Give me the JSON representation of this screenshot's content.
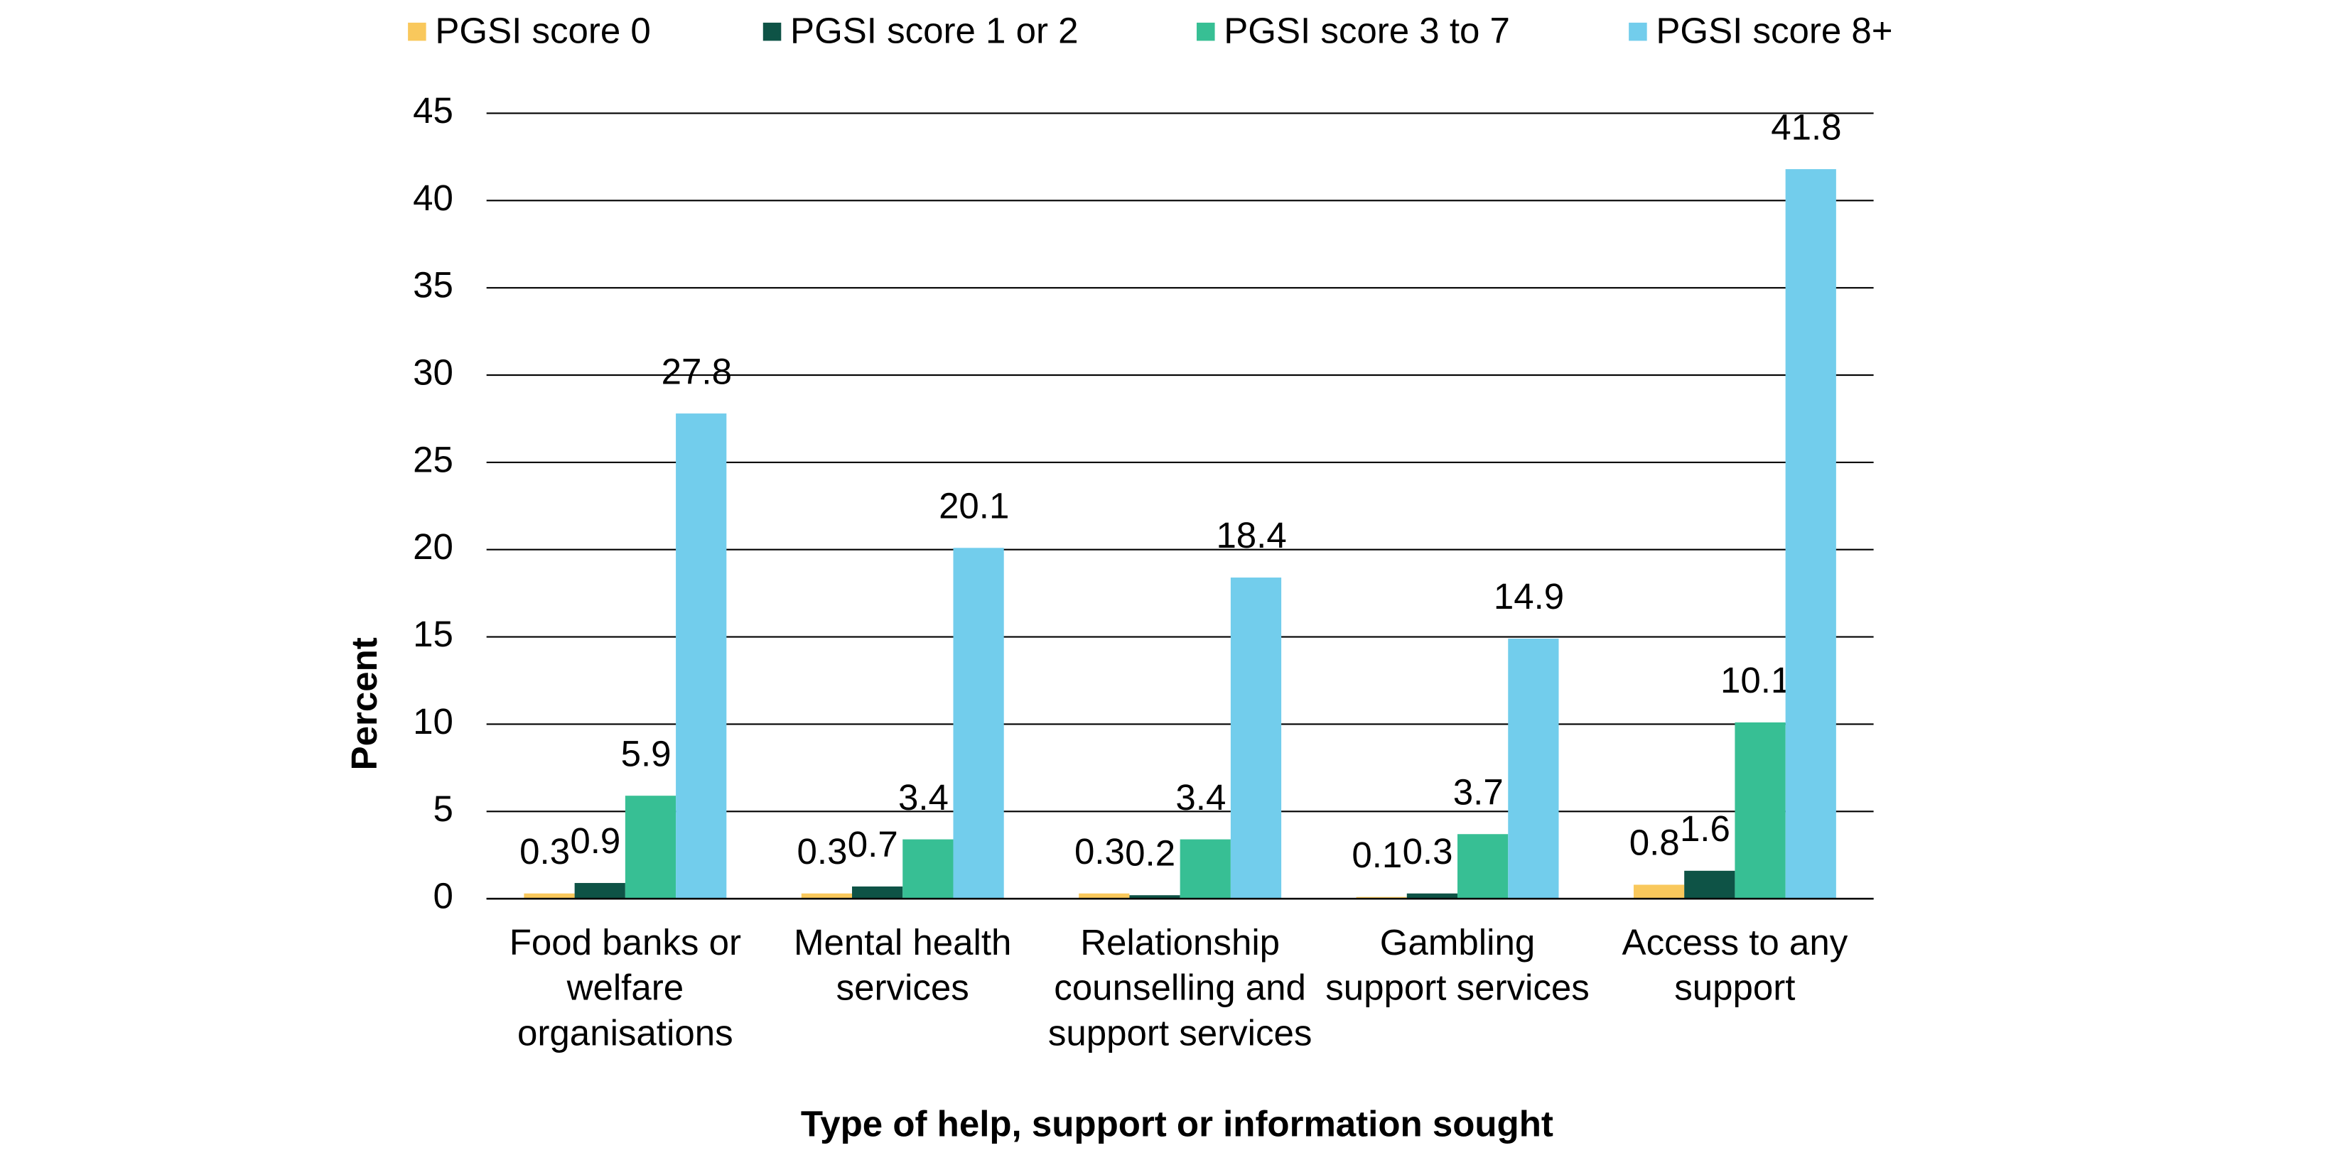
{
  "chart_data": {
    "type": "bar",
    "x_label": "Type of help, support or information sought",
    "y_label": "Percent",
    "categories": [
      "Food banks or welfare organisations",
      "Mental health services",
      "Relationship counselling and support services",
      "Gambling support services",
      "Access to any support"
    ],
    "series": [
      {
        "name": "PGSI score 0",
        "color": "#f9c85c",
        "values": [
          0.3,
          0.3,
          0.3,
          0.1,
          0.8
        ]
      },
      {
        "name": "PGSI score 1 or 2",
        "color": "#0e5346",
        "values": [
          0.9,
          0.7,
          0.2,
          0.3,
          1.6
        ]
      },
      {
        "name": "PGSI score 3 to 7",
        "color": "#37bf94",
        "values": [
          5.9,
          3.4,
          3.4,
          3.7,
          10.1
        ]
      },
      {
        "name": "PGSI score 8+",
        "color": "#72cdec",
        "values": [
          27.8,
          20.1,
          18.4,
          14.9,
          41.8
        ]
      }
    ],
    "ylim": [
      0,
      45
    ],
    "yticks": [
      0,
      5,
      10,
      15,
      20,
      25,
      30,
      35,
      40,
      45
    ],
    "grid": true,
    "legend": "top"
  }
}
